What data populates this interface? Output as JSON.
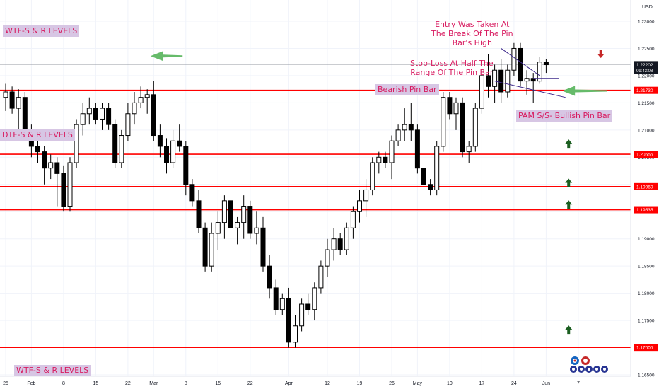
{
  "chart_data": {
    "type": "candlestick",
    "currency": "USD",
    "ylim": [
      1.165,
      1.235
    ],
    "x_tick_labels": [
      {
        "i": 0,
        "label": "25"
      },
      {
        "i": 4,
        "label": "Feb"
      },
      {
        "i": 9,
        "label": "8"
      },
      {
        "i": 14,
        "label": "15"
      },
      {
        "i": 19,
        "label": "22"
      },
      {
        "i": 23,
        "label": "Mar"
      },
      {
        "i": 28,
        "label": "8"
      },
      {
        "i": 33,
        "label": "15"
      },
      {
        "i": 38,
        "label": "22"
      },
      {
        "i": 44,
        "label": "Apr"
      },
      {
        "i": 50,
        "label": "12"
      },
      {
        "i": 55,
        "label": "19"
      },
      {
        "i": 60,
        "label": "26"
      },
      {
        "i": 64,
        "label": "May"
      },
      {
        "i": 69,
        "label": "10"
      },
      {
        "i": 74,
        "label": "17"
      },
      {
        "i": 79,
        "label": "24"
      },
      {
        "i": 84,
        "label": "Jun"
      },
      {
        "i": 89,
        "label": "7"
      }
    ],
    "y_tick_labels": [
      "1.23000",
      "1.22500",
      "1.22000",
      "1.21500",
      "1.21000",
      "1.20500",
      "1.20000",
      "1.19500",
      "1.19000",
      "1.18500",
      "1.18000",
      "1.17500",
      "1.17000",
      "1.16500"
    ],
    "level_labels": [
      {
        "value": 1.2173,
        "label": "1.21730"
      },
      {
        "value": 1.20555,
        "label": "1.20555"
      },
      {
        "value": 1.1996,
        "label": "1.19960"
      },
      {
        "value": 1.19535,
        "label": "1.19535"
      },
      {
        "value": 1.17005,
        "label": "1.17005"
      }
    ],
    "current_price": {
      "value": 1.22202,
      "label": "1.22202",
      "countdown": "09:43:08"
    },
    "candles": [
      {
        "o": 1.216,
        "h": 1.2185,
        "l": 1.2135,
        "c": 1.217
      },
      {
        "o": 1.217,
        "h": 1.218,
        "l": 1.213,
        "c": 1.214
      },
      {
        "o": 1.214,
        "h": 1.2175,
        "l": 1.21,
        "c": 1.216
      },
      {
        "o": 1.216,
        "h": 1.217,
        "l": 1.208,
        "c": 1.209
      },
      {
        "o": 1.209,
        "h": 1.211,
        "l": 1.205,
        "c": 1.207
      },
      {
        "o": 1.207,
        "h": 1.2095,
        "l": 1.204,
        "c": 1.206
      },
      {
        "o": 1.206,
        "h": 1.207,
        "l": 1.2,
        "c": 1.203
      },
      {
        "o": 1.203,
        "h": 1.2055,
        "l": 1.201,
        "c": 1.204
      },
      {
        "o": 1.204,
        "h": 1.205,
        "l": 1.196,
        "c": 1.202
      },
      {
        "o": 1.202,
        "h": 1.2035,
        "l": 1.195,
        "c": 1.196
      },
      {
        "o": 1.196,
        "h": 1.205,
        "l": 1.195,
        "c": 1.204
      },
      {
        "o": 1.204,
        "h": 1.212,
        "l": 1.203,
        "c": 1.211
      },
      {
        "o": 1.211,
        "h": 1.215,
        "l": 1.209,
        "c": 1.213
      },
      {
        "o": 1.213,
        "h": 1.216,
        "l": 1.211,
        "c": 1.214
      },
      {
        "o": 1.214,
        "h": 1.215,
        "l": 1.211,
        "c": 1.212
      },
      {
        "o": 1.212,
        "h": 1.215,
        "l": 1.21,
        "c": 1.214
      },
      {
        "o": 1.214,
        "h": 1.215,
        "l": 1.21,
        "c": 1.211
      },
      {
        "o": 1.211,
        "h": 1.212,
        "l": 1.203,
        "c": 1.204
      },
      {
        "o": 1.204,
        "h": 1.21,
        "l": 1.203,
        "c": 1.209
      },
      {
        "o": 1.209,
        "h": 1.215,
        "l": 1.208,
        "c": 1.213
      },
      {
        "o": 1.213,
        "h": 1.217,
        "l": 1.211,
        "c": 1.215
      },
      {
        "o": 1.215,
        "h": 1.218,
        "l": 1.214,
        "c": 1.216
      },
      {
        "o": 1.216,
        "h": 1.2175,
        "l": 1.213,
        "c": 1.2165
      },
      {
        "o": 1.2165,
        "h": 1.219,
        "l": 1.208,
        "c": 1.209
      },
      {
        "o": 1.209,
        "h": 1.211,
        "l": 1.205,
        "c": 1.207
      },
      {
        "o": 1.207,
        "h": 1.2085,
        "l": 1.202,
        "c": 1.204
      },
      {
        "o": 1.204,
        "h": 1.21,
        "l": 1.203,
        "c": 1.208
      },
      {
        "o": 1.208,
        "h": 1.211,
        "l": 1.206,
        "c": 1.207
      },
      {
        "o": 1.207,
        "h": 1.208,
        "l": 1.198,
        "c": 1.2
      },
      {
        "o": 1.2,
        "h": 1.201,
        "l": 1.196,
        "c": 1.197
      },
      {
        "o": 1.197,
        "h": 1.199,
        "l": 1.191,
        "c": 1.192
      },
      {
        "o": 1.192,
        "h": 1.193,
        "l": 1.184,
        "c": 1.185
      },
      {
        "o": 1.185,
        "h": 1.193,
        "l": 1.184,
        "c": 1.191
      },
      {
        "o": 1.191,
        "h": 1.195,
        "l": 1.188,
        "c": 1.193
      },
      {
        "o": 1.193,
        "h": 1.198,
        "l": 1.19,
        "c": 1.197
      },
      {
        "o": 1.197,
        "h": 1.198,
        "l": 1.19,
        "c": 1.192
      },
      {
        "o": 1.192,
        "h": 1.194,
        "l": 1.189,
        "c": 1.193
      },
      {
        "o": 1.193,
        "h": 1.198,
        "l": 1.19,
        "c": 1.196
      },
      {
        "o": 1.196,
        "h": 1.197,
        "l": 1.19,
        "c": 1.191
      },
      {
        "o": 1.191,
        "h": 1.195,
        "l": 1.189,
        "c": 1.192
      },
      {
        "o": 1.192,
        "h": 1.194,
        "l": 1.184,
        "c": 1.185
      },
      {
        "o": 1.185,
        "h": 1.187,
        "l": 1.179,
        "c": 1.181
      },
      {
        "o": 1.181,
        "h": 1.1825,
        "l": 1.176,
        "c": 1.177
      },
      {
        "o": 1.177,
        "h": 1.18,
        "l": 1.176,
        "c": 1.179
      },
      {
        "o": 1.179,
        "h": 1.181,
        "l": 1.17,
        "c": 1.171
      },
      {
        "o": 1.171,
        "h": 1.176,
        "l": 1.17,
        "c": 1.174
      },
      {
        "o": 1.174,
        "h": 1.179,
        "l": 1.173,
        "c": 1.178
      },
      {
        "o": 1.178,
        "h": 1.18,
        "l": 1.176,
        "c": 1.177
      },
      {
        "o": 1.177,
        "h": 1.182,
        "l": 1.175,
        "c": 1.181
      },
      {
        "o": 1.181,
        "h": 1.186,
        "l": 1.18,
        "c": 1.185
      },
      {
        "o": 1.185,
        "h": 1.19,
        "l": 1.183,
        "c": 1.188
      },
      {
        "o": 1.188,
        "h": 1.192,
        "l": 1.186,
        "c": 1.19
      },
      {
        "o": 1.19,
        "h": 1.191,
        "l": 1.187,
        "c": 1.188
      },
      {
        "o": 1.188,
        "h": 1.193,
        "l": 1.187,
        "c": 1.192
      },
      {
        "o": 1.192,
        "h": 1.196,
        "l": 1.19,
        "c": 1.195
      },
      {
        "o": 1.195,
        "h": 1.199,
        "l": 1.193,
        "c": 1.197
      },
      {
        "o": 1.197,
        "h": 1.201,
        "l": 1.194,
        "c": 1.199
      },
      {
        "o": 1.199,
        "h": 1.205,
        "l": 1.198,
        "c": 1.204
      },
      {
        "o": 1.204,
        "h": 1.206,
        "l": 1.202,
        "c": 1.205
      },
      {
        "o": 1.205,
        "h": 1.206,
        "l": 1.203,
        "c": 1.204
      },
      {
        "o": 1.204,
        "h": 1.209,
        "l": 1.201,
        "c": 1.208
      },
      {
        "o": 1.208,
        "h": 1.211,
        "l": 1.207,
        "c": 1.21
      },
      {
        "o": 1.21,
        "h": 1.214,
        "l": 1.208,
        "c": 1.211
      },
      {
        "o": 1.211,
        "h": 1.215,
        "l": 1.208,
        "c": 1.21
      },
      {
        "o": 1.21,
        "h": 1.211,
        "l": 1.202,
        "c": 1.203
      },
      {
        "o": 1.203,
        "h": 1.206,
        "l": 1.199,
        "c": 1.2
      },
      {
        "o": 1.2,
        "h": 1.201,
        "l": 1.198,
        "c": 1.199
      },
      {
        "o": 1.199,
        "h": 1.208,
        "l": 1.198,
        "c": 1.207
      },
      {
        "o": 1.207,
        "h": 1.217,
        "l": 1.206,
        "c": 1.216
      },
      {
        "o": 1.216,
        "h": 1.217,
        "l": 1.212,
        "c": 1.213
      },
      {
        "o": 1.213,
        "h": 1.216,
        "l": 1.21,
        "c": 1.215
      },
      {
        "o": 1.215,
        "h": 1.216,
        "l": 1.205,
        "c": 1.206
      },
      {
        "o": 1.206,
        "h": 1.208,
        "l": 1.204,
        "c": 1.207
      },
      {
        "o": 1.207,
        "h": 1.215,
        "l": 1.206,
        "c": 1.214
      },
      {
        "o": 1.214,
        "h": 1.221,
        "l": 1.213,
        "c": 1.22
      },
      {
        "o": 1.22,
        "h": 1.224,
        "l": 1.216,
        "c": 1.218
      },
      {
        "o": 1.218,
        "h": 1.222,
        "l": 1.215,
        "c": 1.221
      },
      {
        "o": 1.221,
        "h": 1.223,
        "l": 1.215,
        "c": 1.217
      },
      {
        "o": 1.217,
        "h": 1.222,
        "l": 1.216,
        "c": 1.221
      },
      {
        "o": 1.221,
        "h": 1.226,
        "l": 1.22,
        "c": 1.225
      },
      {
        "o": 1.225,
        "h": 1.226,
        "l": 1.218,
        "c": 1.219
      },
      {
        "o": 1.219,
        "h": 1.221,
        "l": 1.2165,
        "c": 1.2195
      },
      {
        "o": 1.2195,
        "h": 1.2205,
        "l": 1.215,
        "c": 1.219
      },
      {
        "o": 1.219,
        "h": 1.2235,
        "l": 1.2185,
        "c": 1.2225
      },
      {
        "o": 1.2225,
        "h": 1.223,
        "l": 1.2205,
        "c": 1.222
      }
    ]
  },
  "annotations": {
    "wtf_top": "WTF-S & R LEVELS",
    "dtf": "DTF-S & R LEVELS",
    "wtf_bottom": "WTF-S & R LEVELS",
    "bearish_pin": "Bearish Pin Bar",
    "pam_bullish": "PAM S/S- Bullish Pin Bar",
    "entry_note": "Entry Was Taken At\nThe Break Of The Pin\nBar's High",
    "stop_note": "Stop-Loss At Half The\nRange Of The Pin Bar"
  },
  "colors": {
    "level_line": "#ff0000",
    "label_text": "#d81b60",
    "label_bg": "#d7c6e4",
    "green_arrow": "#66bb6a",
    "up_arrow": "#1b5e20",
    "down_arrow": "#c62828",
    "annotation_line": "#3f2a8c"
  }
}
